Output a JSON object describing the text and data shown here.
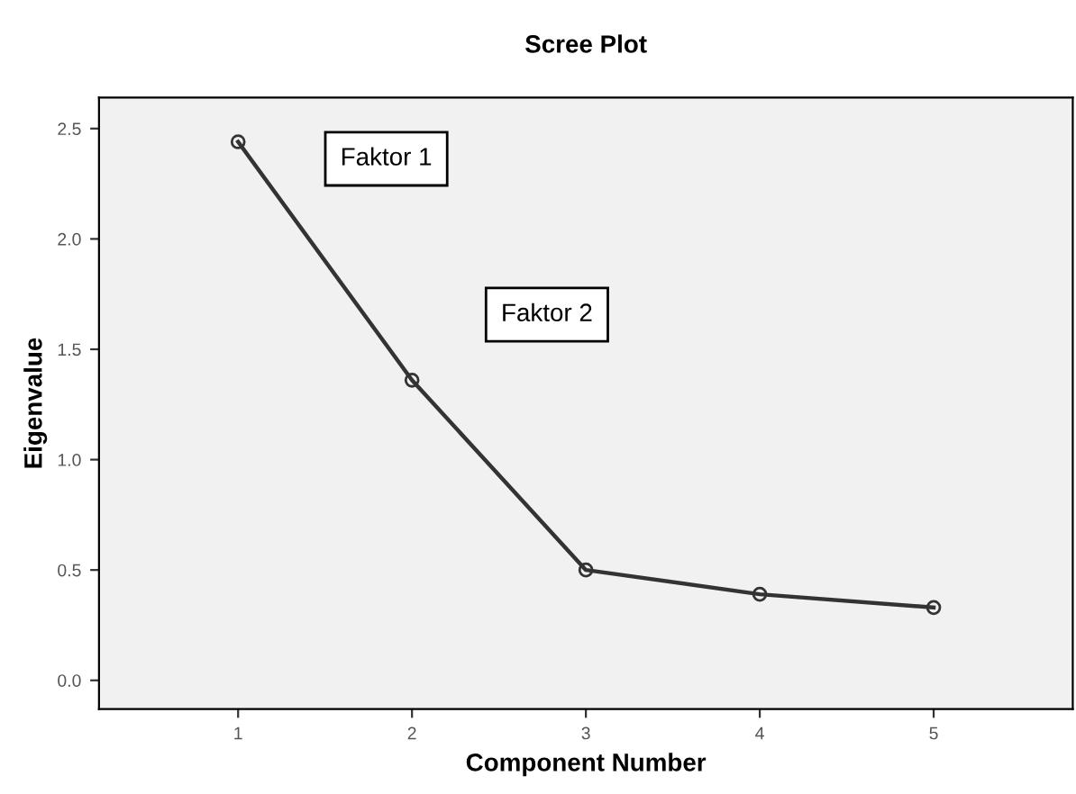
{
  "chart_data": {
    "type": "line",
    "title": "Scree Plot",
    "xlabel": "Component Number",
    "ylabel": "Eigenvalue",
    "x": [
      1,
      2,
      3,
      4,
      5
    ],
    "series": [
      {
        "color": "#333333",
        "values": [
          2.44,
          1.36,
          0.5,
          0.39,
          0.33
        ]
      }
    ],
    "xlim": [
      0.2,
      5.8
    ],
    "xticks": [
      1,
      2,
      3,
      4,
      5
    ],
    "ylim": [
      -0.13,
      2.64
    ],
    "yticks": [
      {
        "value": 0,
        "label": "0.0"
      },
      {
        "value": 0.5,
        "label": "0.5"
      },
      {
        "value": 1,
        "label": "1.0"
      },
      {
        "value": 1.5,
        "label": "1.5"
      },
      {
        "value": 2,
        "label": "2.0"
      },
      {
        "value": 2.5,
        "label": "2.5"
      }
    ],
    "annotations": [
      "Faktor 1",
      "Faktor 2"
    ],
    "marker": "circle",
    "line_style": "solid",
    "grid": false,
    "legend": false
  }
}
